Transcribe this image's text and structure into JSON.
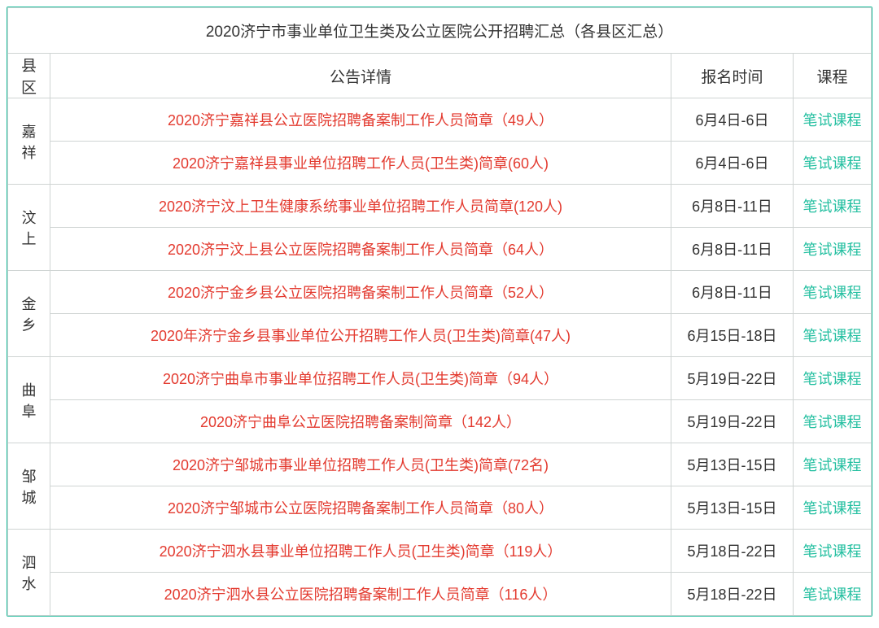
{
  "colors": {
    "accent": "#23bfa0",
    "link_red": "#e33a2f",
    "border": "#cfd4d3",
    "text": "#333333",
    "background": "#ffffff"
  },
  "title": "2020济宁市事业单位卫生类及公立医院公开招聘汇总（各县区汇总）",
  "headers": {
    "county": "县区",
    "detail": "公告详情",
    "time": "报名时间",
    "course": "课程"
  },
  "course_label": "笔试课程",
  "groups": [
    {
      "county": "嘉祥",
      "rows": [
        {
          "detail": "2020济宁嘉祥县公立医院招聘备案制工作人员简章（49人）",
          "time": "6月4日-6日"
        },
        {
          "detail": "2020济宁嘉祥县事业单位招聘工作人员(卫生类)简章(60人)",
          "time": "6月4日-6日"
        }
      ]
    },
    {
      "county": "汶上",
      "rows": [
        {
          "detail": "2020济宁汶上卫生健康系统事业单位招聘工作人员简章(120人)",
          "time": "6月8日-11日"
        },
        {
          "detail": "2020济宁汶上县公立医院招聘备案制工作人员简章（64人）",
          "time": "6月8日-11日"
        }
      ]
    },
    {
      "county": "金乡",
      "rows": [
        {
          "detail": "2020济宁金乡县公立医院招聘备案制工作人员简章（52人）",
          "time": "6月8日-11日"
        },
        {
          "detail": "2020年济宁金乡县事业单位公开招聘工作人员(卫生类)简章(47人)",
          "time": "6月15日-18日"
        }
      ]
    },
    {
      "county": "曲阜",
      "rows": [
        {
          "detail": "2020济宁曲阜市事业单位招聘工作人员(卫生类)简章（94人）",
          "time": "5月19日-22日"
        },
        {
          "detail": "2020济宁曲阜公立医院招聘备案制简章（142人）",
          "time": "5月19日-22日"
        }
      ]
    },
    {
      "county": "邹城",
      "rows": [
        {
          "detail": "2020济宁邹城市事业单位招聘工作人员(卫生类)简章(72名)",
          "time": "5月13日-15日"
        },
        {
          "detail": "2020济宁邹城市公立医院招聘备案制工作人员简章（80人）",
          "time": "5月13日-15日"
        }
      ]
    },
    {
      "county": "泗水",
      "rows": [
        {
          "detail": "2020济宁泗水县事业单位招聘工作人员(卫生类)简章（119人）",
          "time": "5月18日-22日"
        },
        {
          "detail": "2020济宁泗水县公立医院招聘备案制工作人员简章（116人）",
          "time": "5月18日-22日"
        }
      ]
    }
  ]
}
